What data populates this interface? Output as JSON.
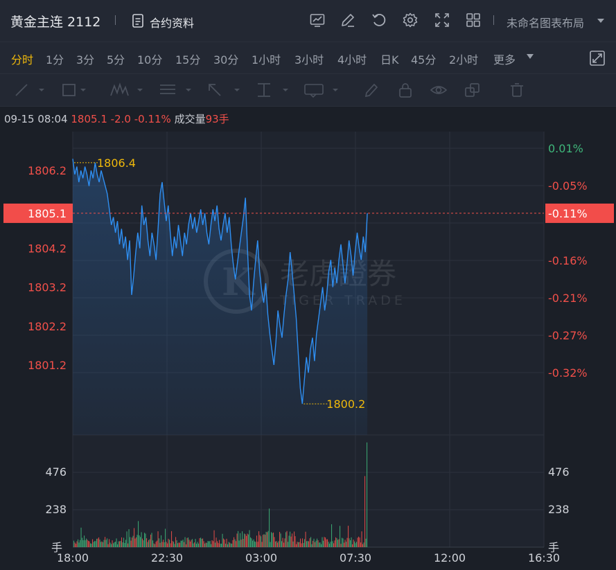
{
  "header": {
    "title": "黄金主连 2112",
    "contract_label": "合约资料",
    "layout_label": "未命名图表布局",
    "icons": [
      "trend-chart-icon",
      "edit-icon",
      "undo-icon",
      "gear-icon",
      "fullscreen-icon",
      "grid-layout-icon"
    ]
  },
  "periods": [
    {
      "label": "分时",
      "active": true
    },
    {
      "label": "1分"
    },
    {
      "label": "3分"
    },
    {
      "label": "5分"
    },
    {
      "label": "10分"
    },
    {
      "label": "15分"
    },
    {
      "label": "30分"
    },
    {
      "label": "1小时"
    },
    {
      "label": "3小时"
    },
    {
      "label": "4小时"
    },
    {
      "label": "日K"
    },
    {
      "label": "45分"
    },
    {
      "label": "2小时"
    },
    {
      "label": "更多"
    }
  ],
  "drawing_tools": [
    "line-tool-icon",
    "rect-tool-icon",
    "wave-tool-icon",
    "fib-tool-icon",
    "arrow-tool-icon",
    "measure-tool-icon",
    "text-tool-icon",
    "pen-icon",
    "lock-icon",
    "eye-icon",
    "copy-icon",
    "trash-icon"
  ],
  "info": {
    "datetime": "09-15 08:04",
    "price": "1805.1",
    "change": "-2.0",
    "change_pct": "-0.11%",
    "volume_label": "成交量",
    "volume": "93手"
  },
  "watermark": {
    "cn": "老虎證券",
    "en": "TIGER TRADE"
  },
  "colors": {
    "up": "#f2504a",
    "down": "#3fb67a",
    "line": "#2f8ff2",
    "highlight": "#f0b90b"
  },
  "chart_data": {
    "type": "line",
    "price_ticks": [
      "1806.2",
      "1804.2",
      "1803.2",
      "1802.2",
      "1801.2"
    ],
    "pct_ticks": [
      "0.01%",
      "-0.05%",
      "-0.16%",
      "-0.21%",
      "-0.27%",
      "-0.32%"
    ],
    "current_price": "1805.1",
    "current_pct": "-0.11%",
    "high_label": "1806.4",
    "low_label": "1800.2",
    "volume_ticks": [
      "476",
      "238"
    ],
    "volume_unit": "手",
    "x_ticks": [
      "18:00",
      "22:30",
      "03:00",
      "07:30",
      "12:00",
      "16:30"
    ],
    "ylim": [
      1799.4,
      1807.2
    ],
    "volume_max": 600,
    "session_minutes": 1350,
    "elapsed_minutes": 844,
    "prices": [
      1806.5,
      1806.1,
      1806.3,
      1805.9,
      1806.2,
      1806.0,
      1806.3,
      1806.1,
      1805.8,
      1806.2,
      1806.0,
      1806.4,
      1806.1,
      1805.9,
      1806.2,
      1806.0,
      1805.8,
      1805.6,
      1805.2,
      1804.8,
      1805.0,
      1804.6,
      1804.9,
      1804.3,
      1804.7,
      1804.2,
      1804.5,
      1803.9,
      1804.4,
      1803.0,
      1803.5,
      1804.1,
      1804.6,
      1804.2,
      1805.3,
      1804.8,
      1805.0,
      1804.4,
      1804.0,
      1804.6,
      1804.3,
      1803.9,
      1804.7,
      1805.6,
      1805.9,
      1805.4,
      1804.9,
      1805.3,
      1804.6,
      1804.0,
      1804.5,
      1804.2,
      1804.8,
      1804.4,
      1804.0,
      1804.6,
      1804.3,
      1804.8,
      1805.1,
      1804.7,
      1805.0,
      1804.6,
      1804.9,
      1805.2,
      1804.8,
      1805.1,
      1804.6,
      1804.3,
      1804.8,
      1805.2,
      1804.9,
      1805.3,
      1804.7,
      1804.4,
      1804.8,
      1805.1,
      1804.6,
      1805.0,
      1804.3,
      1803.8,
      1803.4,
      1803.8,
      1804.2,
      1804.6,
      1805.0,
      1805.5,
      1804.2,
      1803.0,
      1802.6,
      1803.3,
      1803.9,
      1804.4,
      1803.6,
      1803.1,
      1802.8,
      1803.3,
      1802.5,
      1802.0,
      1801.6,
      1801.2,
      1801.8,
      1802.6,
      1802.2,
      1801.9,
      1802.5,
      1803.0,
      1803.4,
      1804.1,
      1803.6,
      1803.0,
      1802.4,
      1801.5,
      1800.6,
      1800.2,
      1800.8,
      1801.4,
      1801.0,
      1801.6,
      1801.9,
      1801.3,
      1802.0,
      1802.4,
      1802.8,
      1803.2,
      1802.6,
      1803.0,
      1803.6,
      1803.9,
      1803.2,
      1803.7,
      1803.3,
      1803.9,
      1804.3,
      1803.8,
      1803.3,
      1803.8,
      1804.4,
      1804.0,
      1803.5,
      1804.1,
      1804.6,
      1804.2,
      1803.9,
      1804.5,
      1804.1,
      1805.1
    ]
  }
}
